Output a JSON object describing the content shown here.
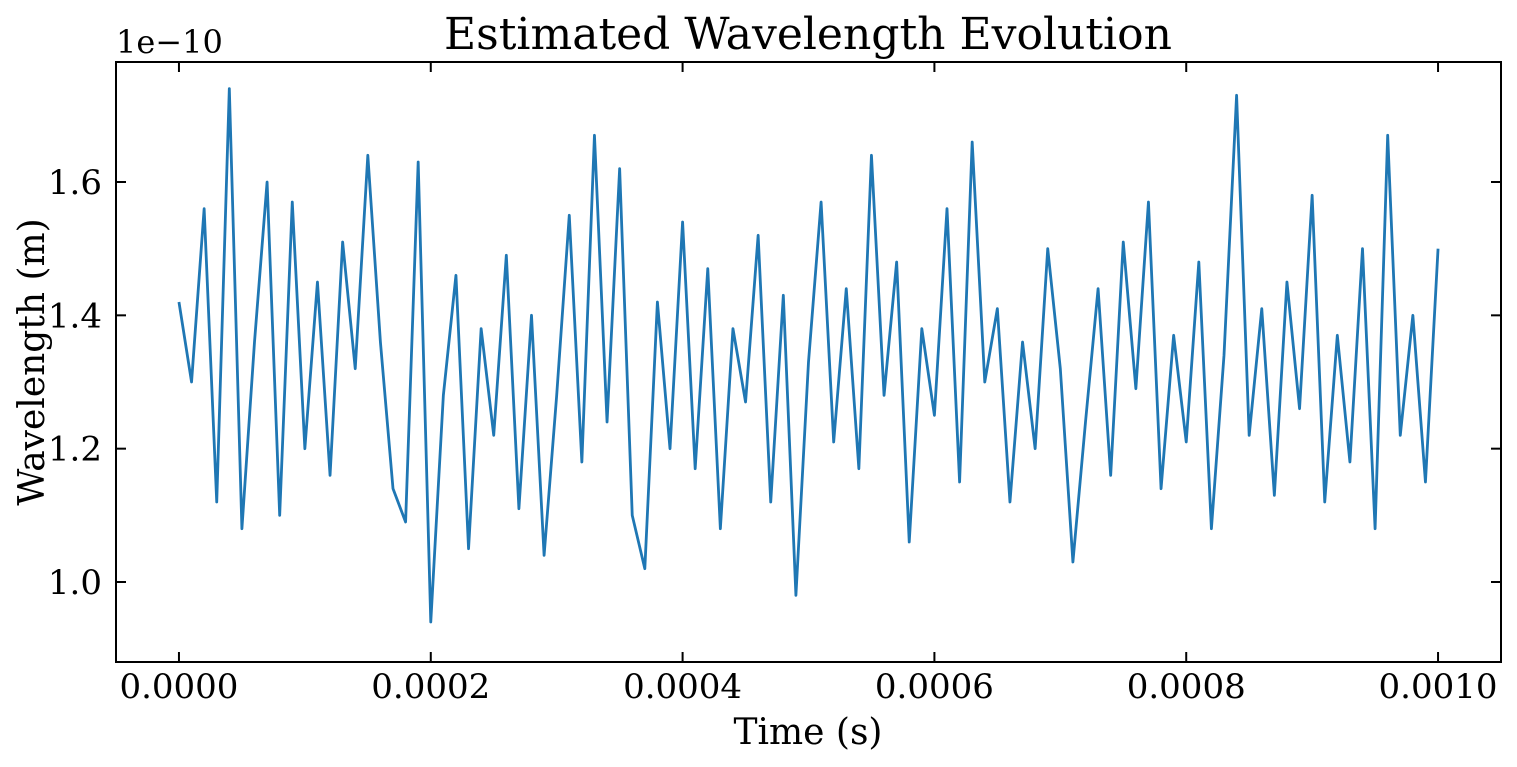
{
  "chart_data": {
    "type": "line",
    "title": "Estimated Wavelength Evolution",
    "xlabel": "Time (s)",
    "ylabel": "Wavelength (m)",
    "y_offset_text": "1e−10",
    "xlim": [
      -5e-05,
      0.00105
    ],
    "ylim": [
      0.88,
      1.78
    ],
    "x_ticks": [
      0.0,
      0.0002,
      0.0004,
      0.0006,
      0.0008,
      0.001
    ],
    "x_tick_labels": [
      "0.0000",
      "0.0002",
      "0.0004",
      "0.0006",
      "0.0008",
      "0.0010"
    ],
    "y_ticks": [
      1.0,
      1.2,
      1.4,
      1.6
    ],
    "y_tick_labels": [
      "1.0",
      "1.2",
      "1.4",
      "1.6"
    ],
    "grid": false,
    "series": [
      {
        "color": "#1f77b4",
        "x": [
          0,
          1e-05,
          2e-05,
          3e-05,
          4e-05,
          5e-05,
          6e-05,
          7e-05,
          8e-05,
          9e-05,
          0.0001,
          0.00011,
          0.00012,
          0.00013,
          0.00014,
          0.00015,
          0.00016,
          0.00017,
          0.00018,
          0.00019,
          0.0002,
          0.00021,
          0.00022,
          0.00023,
          0.00024,
          0.00025,
          0.00026,
          0.00027,
          0.00028,
          0.00029,
          0.0003,
          0.00031,
          0.00032,
          0.00033,
          0.00034,
          0.00035,
          0.00036,
          0.00037,
          0.00038,
          0.00039,
          0.0004,
          0.00041,
          0.00042,
          0.00043,
          0.00044,
          0.00045,
          0.00046,
          0.00047,
          0.00048,
          0.00049,
          0.0005,
          0.00051,
          0.00052,
          0.00053,
          0.00054,
          0.00055,
          0.00056,
          0.00057,
          0.00058,
          0.00059,
          0.0006,
          0.00061,
          0.00062,
          0.00063,
          0.00064,
          0.00065,
          0.00066,
          0.00067,
          0.00068,
          0.00069,
          0.0007,
          0.00071,
          0.00072,
          0.00073,
          0.00074,
          0.00075,
          0.00076,
          0.00077,
          0.00078,
          0.00079,
          0.0008,
          0.00081,
          0.00082,
          0.00083,
          0.00084,
          0.00085,
          0.00086,
          0.00087,
          0.00088,
          0.00089,
          0.0009,
          0.00091,
          0.00092,
          0.00093,
          0.00094,
          0.00095,
          0.00096,
          0.00097,
          0.00098,
          0.00099,
          0.001
        ],
        "y": [
          1.42,
          1.3,
          1.56,
          1.12,
          1.74,
          1.08,
          1.36,
          1.6,
          1.1,
          1.57,
          1.2,
          1.45,
          1.16,
          1.51,
          1.32,
          1.64,
          1.36,
          1.14,
          1.09,
          1.63,
          0.94,
          1.28,
          1.46,
          1.05,
          1.38,
          1.22,
          1.49,
          1.11,
          1.4,
          1.04,
          1.28,
          1.55,
          1.18,
          1.67,
          1.24,
          1.62,
          1.1,
          1.02,
          1.42,
          1.2,
          1.54,
          1.17,
          1.47,
          1.08,
          1.38,
          1.27,
          1.52,
          1.12,
          1.43,
          0.98,
          1.33,
          1.57,
          1.21,
          1.44,
          1.17,
          1.64,
          1.28,
          1.48,
          1.06,
          1.38,
          1.25,
          1.56,
          1.15,
          1.66,
          1.3,
          1.41,
          1.12,
          1.36,
          1.2,
          1.5,
          1.32,
          1.03,
          1.24,
          1.44,
          1.16,
          1.51,
          1.29,
          1.57,
          1.14,
          1.37,
          1.21,
          1.48,
          1.08,
          1.34,
          1.73,
          1.22,
          1.41,
          1.13,
          1.45,
          1.26,
          1.58,
          1.12,
          1.37,
          1.18,
          1.5,
          1.08,
          1.67,
          1.22,
          1.4,
          1.15,
          1.5
        ]
      }
    ]
  }
}
